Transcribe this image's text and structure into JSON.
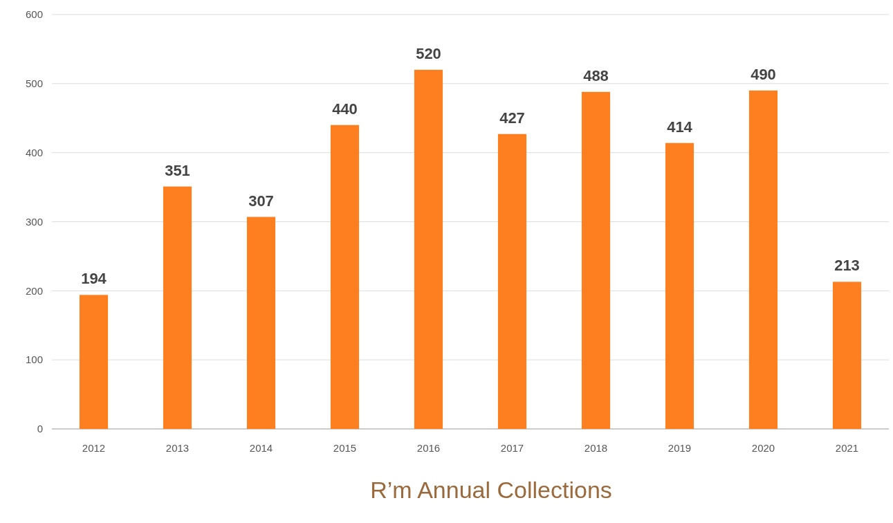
{
  "chart_data": {
    "type": "bar",
    "title": "R’m Annual Collections",
    "categories": [
      "2012",
      "2013",
      "2014",
      "2015",
      "2016",
      "2017",
      "2018",
      "2019",
      "2020",
      "2021"
    ],
    "values": [
      194,
      351,
      307,
      440,
      520,
      427,
      488,
      414,
      490,
      213
    ],
    "color": "#fd7f20",
    "ylim": [
      0,
      600
    ],
    "yticks": [
      0,
      100,
      200,
      300,
      400,
      500,
      600
    ],
    "grid": "y",
    "data_labels": true
  }
}
